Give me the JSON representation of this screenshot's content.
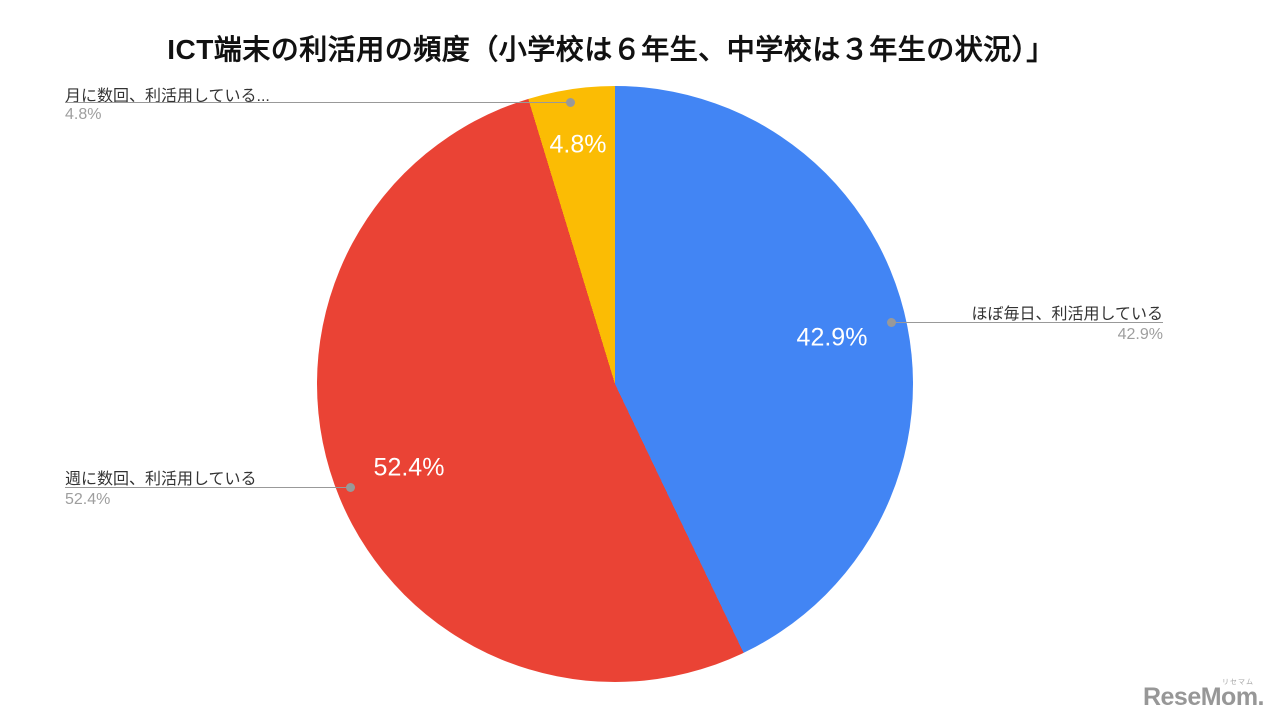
{
  "title": "ICT端末の利活用の頻度（小学校は６年生、中学校は３年生の状況）」",
  "chart_data": {
    "type": "pie",
    "title": "ICT端末の利活用の頻度（小学校は６年生、中学校は３年生の状況）」",
    "direction": "clockwise",
    "start_angle_deg": 0,
    "legend_position": "callout-labels-with-leader-lines",
    "slices": [
      {
        "label": "ほぼ毎日、利活用している",
        "value": 42.9,
        "display": "42.9%",
        "color": "#4285F4"
      },
      {
        "label": "週に数回、利活用している",
        "value": 52.4,
        "display": "52.4%",
        "color": "#EA4335"
      },
      {
        "label": "月に数回、利活用している...",
        "value": 4.8,
        "display": "4.8%",
        "color": "#FBBC04"
      }
    ]
  },
  "branding": {
    "logo_text": "ReseMom.",
    "logo_ruby": "リセマム"
  },
  "colors": {
    "leader_line": "#999999",
    "pct_gray": "#9E9E9E",
    "label_dark": "#333333",
    "title_color": "#111111",
    "background": "#FFFFFF"
  }
}
